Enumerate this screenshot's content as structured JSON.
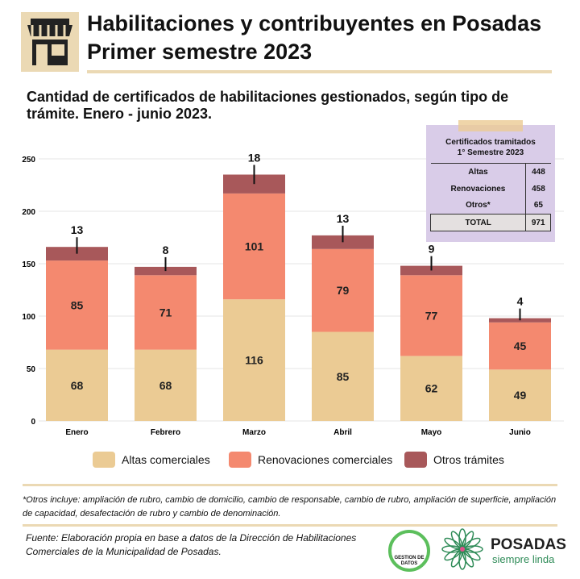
{
  "header": {
    "title_line1": "Habilitaciones y contribuyentes en Posadas",
    "title_line2": "Primer semestre 2023"
  },
  "subtitle": "Cantidad de certificados de habilitaciones gestionados, según tipo de trámite. Enero - junio 2023.",
  "summary": {
    "heading1": "Certificados tramitados",
    "heading2": "1° Semestre 2023",
    "rows": [
      {
        "label": "Altas",
        "value": "448"
      },
      {
        "label": "Renovaciones",
        "value": "458"
      },
      {
        "label": "Otros*",
        "value": "65"
      }
    ],
    "total_label": "TOTAL",
    "total_value": "971"
  },
  "chart_data": {
    "type": "bar",
    "stacked": true,
    "title": "Cantidad de certificados de habilitaciones gestionados, según tipo de trámite. Enero - junio 2023.",
    "categories": [
      "Enero",
      "Febrero",
      "Marzo",
      "Abril",
      "Mayo",
      "Junio"
    ],
    "series": [
      {
        "name": "Altas comerciales",
        "color": "#EBCB94",
        "values": [
          68,
          68,
          116,
          85,
          62,
          49
        ]
      },
      {
        "name": "Renovaciones comerciales",
        "color": "#F4896F",
        "values": [
          85,
          71,
          101,
          79,
          77,
          45
        ]
      },
      {
        "name": "Otros trámites",
        "color": "#A8585A",
        "values": [
          13,
          8,
          18,
          13,
          9,
          4
        ]
      }
    ],
    "yticks": [
      0,
      50,
      100,
      150,
      200,
      250
    ],
    "ylim": [
      0,
      250
    ],
    "grid": true,
    "legend": "bottom"
  },
  "note": "*Otros incluye: ampliación de rubro, cambio de domicilio, cambio de responsable, cambio de rubro, ampliación de superficie, ampliación de capacidad, desafectación de rubro y cambio de denominación.",
  "source": "Fuente: Elaboración propia en base a datos de la Dirección de Habilitaciones Comerciales de la Municipalidad de Posadas.",
  "logos": {
    "gd": "GESTION DE DATOS",
    "posadas": "POSADAS",
    "posadas_tag": "siempre linda"
  }
}
